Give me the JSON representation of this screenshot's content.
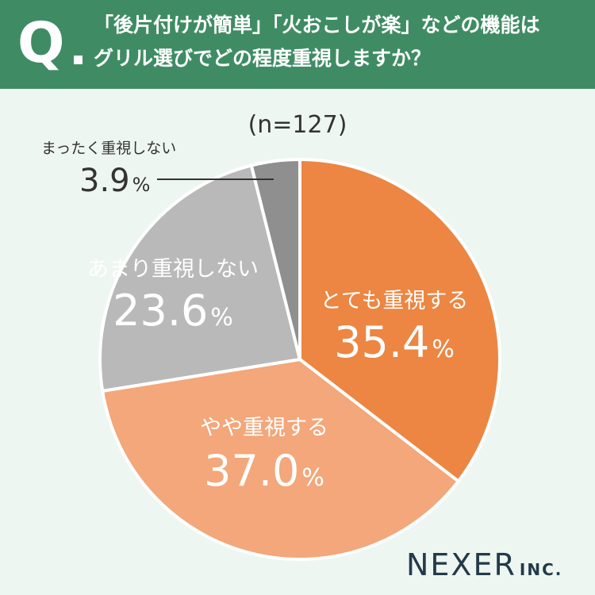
{
  "question": {
    "letter": "Q",
    "line1": "「後片付けが簡単」「火おこしが楽」などの機能は",
    "line2": "グリル選びでどの程度重視しますか？"
  },
  "sample_size": "(n=127)",
  "logo": {
    "main": "NEXER",
    "sub": "INC."
  },
  "chart_data": {
    "type": "pie",
    "start": "12 o'clock",
    "direction": "clockwise",
    "slices": [
      {
        "label": "とても重視する",
        "value": 35.4,
        "value_text": "35.4",
        "unit": "%",
        "color": "#ec8642",
        "text_color": "#ffffff"
      },
      {
        "label": "やや重視する",
        "value": 37.0,
        "value_text": "37.0",
        "unit": "%",
        "color": "#f3a77a",
        "text_color": "#ffffff"
      },
      {
        "label": "あまり重視しない",
        "value": 23.6,
        "value_text": "23.6",
        "unit": "%",
        "color": "#b9b9b9",
        "text_color": "#ffffff"
      },
      {
        "label": "まったく重視しない",
        "value": 3.9,
        "value_text": "3.9",
        "unit": "%",
        "color": "#8f8f8f",
        "text_color": "#333333",
        "callout": true
      }
    ]
  }
}
